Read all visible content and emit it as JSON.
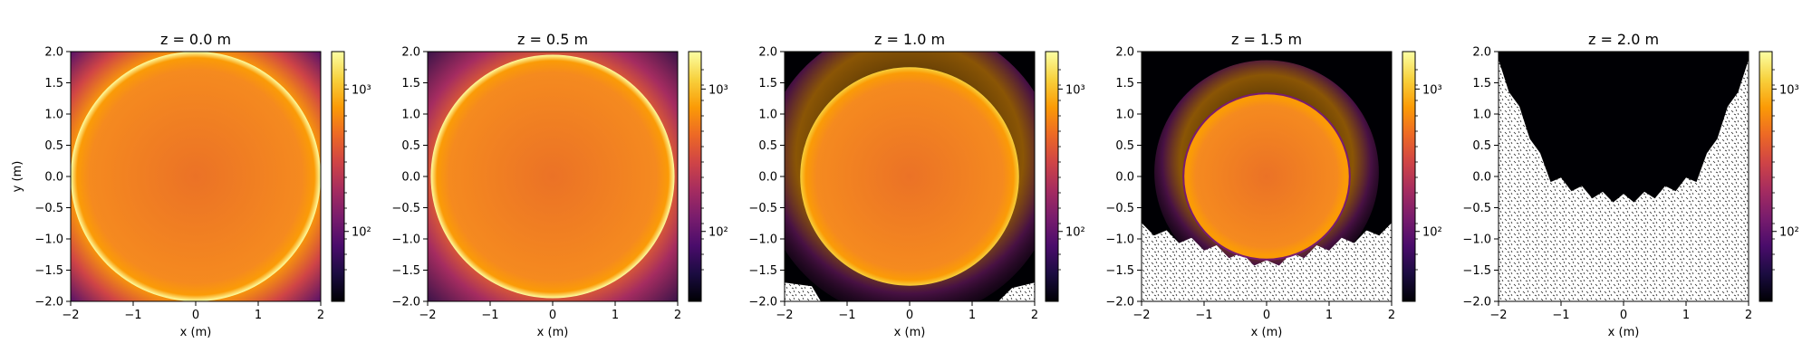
{
  "chart_data": [
    {
      "type": "heatmap",
      "title": "z = 0.0 m",
      "xlabel": "x (m)",
      "ylabel": "y (m)",
      "xlim": [
        -2,
        2
      ],
      "ylim": [
        -2,
        2
      ],
      "xticks": [
        "−2",
        "−1",
        "0",
        "1",
        "2"
      ],
      "yticks": [
        "2.0",
        "1.5",
        "1.0",
        "0.5",
        "0.0",
        "−0.5",
        "−1.0",
        "−1.5",
        "−2.0"
      ],
      "colorbar": {
        "scale": "log",
        "ticks": [
          "10²",
          "10³"
        ]
      },
      "circle_radius": 2.0,
      "rim_brightness": 1.0,
      "halo": "none",
      "empty_region": "none"
    },
    {
      "type": "heatmap",
      "title": "z = 0.5 m",
      "xlabel": "x (m)",
      "ylabel": "",
      "xlim": [
        -2,
        2
      ],
      "ylim": [
        -2,
        2
      ],
      "xticks": [
        "−2",
        "−1",
        "0",
        "1",
        "2"
      ],
      "yticks": [
        "2.0",
        "1.5",
        "1.0",
        "0.5",
        "0.0",
        "−0.5",
        "−1.0",
        "−1.5",
        "−2.0"
      ],
      "colorbar": {
        "scale": "log",
        "ticks": [
          "10²",
          "10³"
        ]
      },
      "circle_radius": 1.95,
      "rim_brightness": 0.9,
      "halo": "corners",
      "empty_region": "none"
    },
    {
      "type": "heatmap",
      "title": "z = 1.0 m",
      "xlabel": "x (m)",
      "ylabel": "",
      "xlim": [
        -2,
        2
      ],
      "ylim": [
        -2,
        2
      ],
      "xticks": [
        "−2",
        "−1",
        "0",
        "1",
        "2"
      ],
      "yticks": [
        "2.0",
        "1.5",
        "1.0",
        "0.5",
        "0.0",
        "−0.5",
        "−1.0",
        "−1.5",
        "−2.0"
      ],
      "colorbar": {
        "scale": "log",
        "ticks": [
          "10²",
          "10³"
        ]
      },
      "circle_radius": 1.75,
      "rim_brightness": 0.7,
      "halo": "upper",
      "empty_region": "bottom-corners"
    },
    {
      "type": "heatmap",
      "title": "z = 1.5 m",
      "xlabel": "x (m)",
      "ylabel": "",
      "xlim": [
        -2,
        2
      ],
      "ylim": [
        -2,
        2
      ],
      "xticks": [
        "−2",
        "−1",
        "0",
        "1",
        "2"
      ],
      "yticks": [
        "2.0",
        "1.5",
        "1.0",
        "0.5",
        "0.0",
        "−0.5",
        "−1.0",
        "−1.5",
        "−2.0"
      ],
      "colorbar": {
        "scale": "log",
        "ticks": [
          "10²",
          "10³"
        ]
      },
      "circle_radius": 1.33,
      "rim_brightness": 0.3,
      "halo": "upper",
      "empty_region": "below -1.0"
    },
    {
      "type": "heatmap",
      "title": "z = 2.0 m",
      "xlabel": "x (m)",
      "ylabel": "",
      "xlim": [
        -2,
        2
      ],
      "ylim": [
        -2,
        2
      ],
      "xticks": [
        "−2",
        "−1",
        "0",
        "1",
        "2"
      ],
      "yticks": [
        "2.0",
        "1.5",
        "1.0",
        "0.5",
        "0.0",
        "−0.5",
        "−1.0",
        "−1.5",
        "−2.0"
      ],
      "colorbar": {
        "scale": "log",
        "ticks": [
          "10²",
          "10³"
        ]
      },
      "circle_radius": 0,
      "rim_brightness": 0,
      "halo": "none",
      "empty_region": "below 0.0"
    }
  ],
  "colors": {
    "background_dark": "#000004",
    "cmap": [
      "#000004",
      "#1b0c41",
      "#4a0c6b",
      "#781c6d",
      "#a52c60",
      "#cf4446",
      "#ed6925",
      "#fb9b06",
      "#f7d13d",
      "#fcffa4"
    ],
    "disk_fill": "#f58a1f",
    "disk_center": "#eb7226",
    "empty": "#ffffff"
  }
}
